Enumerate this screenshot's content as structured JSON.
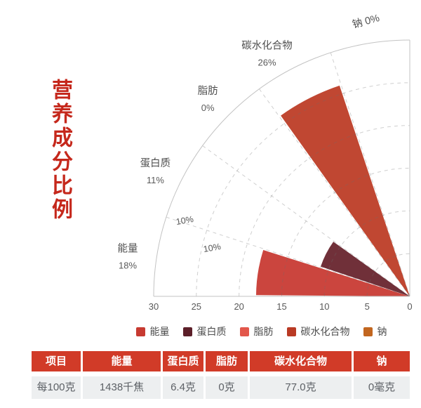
{
  "title": {
    "text": "营养成分比例",
    "color": "#c5281c"
  },
  "chart_data": {
    "type": "polar_fan_bar",
    "description": "Quarter-circle (90°) polar bar chart; 5 category sectors of 18° each; radius = percent value",
    "angle_span_deg": 90,
    "sector_width_deg": 18,
    "rlim": [
      0,
      30
    ],
    "radial_ticks": [
      "30",
      "25",
      "20",
      "15",
      "10",
      "5",
      "0"
    ],
    "grid_radii": [
      5,
      10,
      15,
      20,
      25
    ],
    "categories": [
      "能量",
      "蛋白质",
      "脂肪",
      "碳水化合物",
      "钠"
    ],
    "values": [
      18,
      11,
      0,
      26,
      0
    ],
    "percent_labels": [
      "18%",
      "11%",
      "0%",
      "26%",
      "0%"
    ],
    "wedge_colors": [
      "#cb453e",
      "#703039",
      "#e2574b",
      "#c04732",
      "#c2661f"
    ],
    "inner_annotations": [
      "10%",
      "10%"
    ],
    "grid": "dashed",
    "legend_position": "bottom"
  },
  "legend": {
    "items": [
      {
        "label": "能量",
        "color": "#c73a31"
      },
      {
        "label": "蛋白质",
        "color": "#5c1f29"
      },
      {
        "label": "脂肪",
        "color": "#e2574b"
      },
      {
        "label": "碳水化合物",
        "color": "#b93a24"
      },
      {
        "label": "钠",
        "color": "#c2661f"
      }
    ]
  },
  "table": {
    "header_bg": "#d13b28",
    "row_bg": "#edeff0",
    "headers": [
      "项目",
      "能量",
      "蛋白质",
      "脂肪",
      "碳水化合物",
      "钠"
    ],
    "rows": [
      [
        "每100克",
        "1438千焦",
        "6.4克",
        "0克",
        "77.0克",
        "0毫克"
      ]
    ]
  }
}
